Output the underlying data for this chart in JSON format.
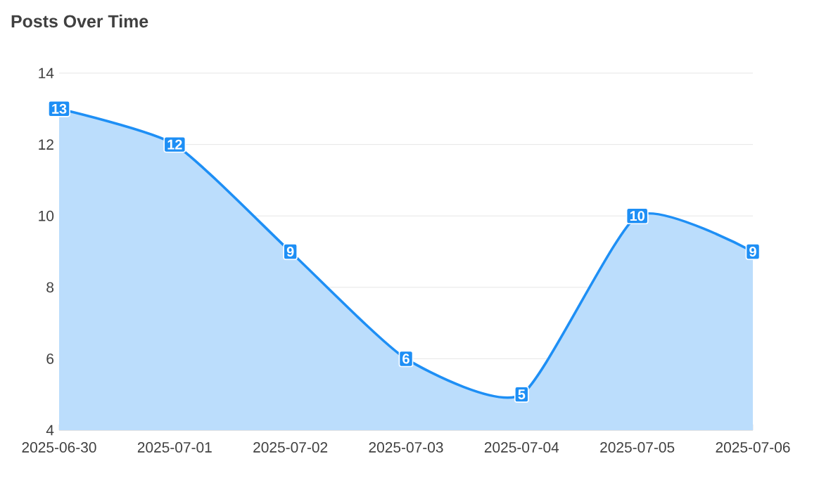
{
  "chart_data": {
    "type": "area",
    "title": "Posts Over Time",
    "categories": [
      "2025-06-30",
      "2025-07-01",
      "2025-07-02",
      "2025-07-03",
      "2025-07-04",
      "2025-07-05",
      "2025-07-06"
    ],
    "values": [
      13,
      12,
      9,
      6,
      5,
      10,
      9
    ],
    "color": "#1e8ff5",
    "ylim": [
      4,
      14
    ],
    "yticks": [
      4,
      6,
      8,
      10,
      12,
      14
    ],
    "grid": "y",
    "data_labels": true
  }
}
